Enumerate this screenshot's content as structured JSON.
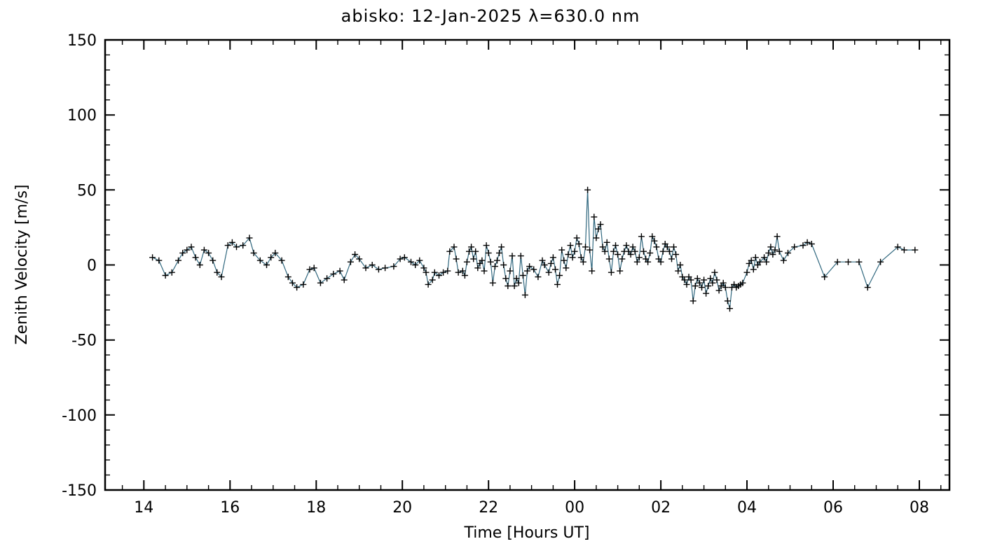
{
  "chart_data": {
    "type": "line",
    "title": "abisko: 12-Jan-2025 λ=630.0 nm",
    "xlabel": "Time [Hours UT]",
    "ylabel": "Zenith Velocity [m/s]",
    "xlim": [
      13.1,
      32.7
    ],
    "ylim": [
      -150,
      150
    ],
    "grid": false,
    "legend": "none",
    "line_color": "#31687f",
    "marker_color": "#000000",
    "marker": "plus",
    "x_minor_step": 0.5,
    "y_minor_step": 10,
    "x_ticks": [
      {
        "value": 14,
        "label": "14"
      },
      {
        "value": 16,
        "label": "16"
      },
      {
        "value": 18,
        "label": "18"
      },
      {
        "value": 20,
        "label": "20"
      },
      {
        "value": 22,
        "label": "22"
      },
      {
        "value": 24,
        "label": "00"
      },
      {
        "value": 26,
        "label": "02"
      },
      {
        "value": 28,
        "label": "04"
      },
      {
        "value": 30,
        "label": "06"
      },
      {
        "value": 32,
        "label": "08"
      }
    ],
    "y_ticks": [
      {
        "value": -150,
        "label": "-150"
      },
      {
        "value": -100,
        "label": "-100"
      },
      {
        "value": -50,
        "label": "-50"
      },
      {
        "value": 0,
        "label": "0"
      },
      {
        "value": 50,
        "label": "50"
      },
      {
        "value": 100,
        "label": "100"
      },
      {
        "value": 150,
        "label": "150"
      }
    ],
    "points": [
      [
        14.2,
        5
      ],
      [
        14.35,
        3
      ],
      [
        14.5,
        -7
      ],
      [
        14.65,
        -5
      ],
      [
        14.8,
        3
      ],
      [
        14.9,
        8
      ],
      [
        15.0,
        10
      ],
      [
        15.1,
        12
      ],
      [
        15.2,
        5
      ],
      [
        15.3,
        0
      ],
      [
        15.4,
        10
      ],
      [
        15.5,
        8
      ],
      [
        15.6,
        3
      ],
      [
        15.7,
        -5
      ],
      [
        15.8,
        -8
      ],
      [
        15.95,
        13
      ],
      [
        16.05,
        15
      ],
      [
        16.15,
        12
      ],
      [
        16.3,
        13
      ],
      [
        16.45,
        18
      ],
      [
        16.55,
        8
      ],
      [
        16.7,
        3
      ],
      [
        16.85,
        0
      ],
      [
        16.95,
        5
      ],
      [
        17.05,
        8
      ],
      [
        17.2,
        3
      ],
      [
        17.35,
        -8
      ],
      [
        17.45,
        -12
      ],
      [
        17.55,
        -15
      ],
      [
        17.7,
        -13
      ],
      [
        17.85,
        -3
      ],
      [
        17.95,
        -2
      ],
      [
        18.1,
        -12
      ],
      [
        18.25,
        -9
      ],
      [
        18.4,
        -6
      ],
      [
        18.55,
        -4
      ],
      [
        18.65,
        -10
      ],
      [
        18.8,
        2
      ],
      [
        18.9,
        7
      ],
      [
        19.0,
        4
      ],
      [
        19.15,
        -2
      ],
      [
        19.3,
        0
      ],
      [
        19.45,
        -3
      ],
      [
        19.6,
        -2
      ],
      [
        19.8,
        -1
      ],
      [
        19.95,
        4
      ],
      [
        20.05,
        5
      ],
      [
        20.2,
        2
      ],
      [
        20.3,
        0
      ],
      [
        20.4,
        3
      ],
      [
        20.5,
        -2
      ],
      [
        20.55,
        -5
      ],
      [
        20.6,
        -13
      ],
      [
        20.7,
        -10
      ],
      [
        20.75,
        -5
      ],
      [
        20.85,
        -7
      ],
      [
        20.95,
        -5
      ],
      [
        21.05,
        -4
      ],
      [
        21.1,
        9
      ],
      [
        21.2,
        12
      ],
      [
        21.25,
        4
      ],
      [
        21.3,
        -5
      ],
      [
        21.4,
        -4
      ],
      [
        21.45,
        -7
      ],
      [
        21.5,
        2
      ],
      [
        21.55,
        9
      ],
      [
        21.6,
        12
      ],
      [
        21.65,
        4
      ],
      [
        21.7,
        9
      ],
      [
        21.75,
        -2
      ],
      [
        21.8,
        1
      ],
      [
        21.85,
        3
      ],
      [
        21.9,
        -4
      ],
      [
        21.95,
        13
      ],
      [
        22.0,
        8
      ],
      [
        22.05,
        2
      ],
      [
        22.1,
        -12
      ],
      [
        22.15,
        -1
      ],
      [
        22.2,
        3
      ],
      [
        22.25,
        8
      ],
      [
        22.3,
        12
      ],
      [
        22.35,
        0
      ],
      [
        22.4,
        -9
      ],
      [
        22.45,
        -14
      ],
      [
        22.5,
        -4
      ],
      [
        22.55,
        6
      ],
      [
        22.6,
        -14
      ],
      [
        22.65,
        -9
      ],
      [
        22.7,
        -12
      ],
      [
        22.75,
        6
      ],
      [
        22.8,
        -7
      ],
      [
        22.85,
        -20
      ],
      [
        22.9,
        -4
      ],
      [
        22.95,
        -1
      ],
      [
        23.05,
        -3
      ],
      [
        23.15,
        -8
      ],
      [
        23.25,
        3
      ],
      [
        23.3,
        0
      ],
      [
        23.4,
        -5
      ],
      [
        23.45,
        1
      ],
      [
        23.5,
        5
      ],
      [
        23.55,
        -3
      ],
      [
        23.6,
        -13
      ],
      [
        23.65,
        -7
      ],
      [
        23.7,
        10
      ],
      [
        23.75,
        3
      ],
      [
        23.8,
        -2
      ],
      [
        23.85,
        7
      ],
      [
        23.9,
        13
      ],
      [
        23.95,
        5
      ],
      [
        24.0,
        9
      ],
      [
        24.05,
        18
      ],
      [
        24.1,
        14
      ],
      [
        24.15,
        5
      ],
      [
        24.2,
        2
      ],
      [
        24.25,
        12
      ],
      [
        24.3,
        50
      ],
      [
        24.35,
        10
      ],
      [
        24.4,
        -4
      ],
      [
        24.45,
        32
      ],
      [
        24.5,
        18
      ],
      [
        24.55,
        24
      ],
      [
        24.6,
        27
      ],
      [
        24.65,
        12
      ],
      [
        24.7,
        9
      ],
      [
        24.75,
        15
      ],
      [
        24.8,
        4
      ],
      [
        24.85,
        -5
      ],
      [
        24.9,
        9
      ],
      [
        24.95,
        13
      ],
      [
        25.0,
        7
      ],
      [
        25.05,
        -4
      ],
      [
        25.1,
        4
      ],
      [
        25.15,
        9
      ],
      [
        25.2,
        13
      ],
      [
        25.25,
        9
      ],
      [
        25.3,
        7
      ],
      [
        25.35,
        12
      ],
      [
        25.4,
        9
      ],
      [
        25.45,
        2
      ],
      [
        25.5,
        5
      ],
      [
        25.55,
        19
      ],
      [
        25.6,
        9
      ],
      [
        25.65,
        4
      ],
      [
        25.7,
        2
      ],
      [
        25.75,
        8
      ],
      [
        25.8,
        19
      ],
      [
        25.85,
        16
      ],
      [
        25.9,
        12
      ],
      [
        25.95,
        4
      ],
      [
        26.0,
        2
      ],
      [
        26.05,
        9
      ],
      [
        26.1,
        14
      ],
      [
        26.15,
        12
      ],
      [
        26.2,
        9
      ],
      [
        26.25,
        4
      ],
      [
        26.3,
        12
      ],
      [
        26.35,
        7
      ],
      [
        26.4,
        -4
      ],
      [
        26.45,
        0
      ],
      [
        26.5,
        -8
      ],
      [
        26.55,
        -10
      ],
      [
        26.6,
        -13
      ],
      [
        26.65,
        -8
      ],
      [
        26.7,
        -10
      ],
      [
        26.75,
        -24
      ],
      [
        26.8,
        -14
      ],
      [
        26.85,
        -9
      ],
      [
        26.9,
        -12
      ],
      [
        26.95,
        -15
      ],
      [
        27.0,
        -10
      ],
      [
        27.05,
        -19
      ],
      [
        27.1,
        -14
      ],
      [
        27.15,
        -9
      ],
      [
        27.2,
        -12
      ],
      [
        27.25,
        -5
      ],
      [
        27.3,
        -10
      ],
      [
        27.35,
        -17
      ],
      [
        27.4,
        -14
      ],
      [
        27.45,
        -12
      ],
      [
        27.5,
        -15
      ],
      [
        27.55,
        -24
      ],
      [
        27.6,
        -29
      ],
      [
        27.65,
        -15
      ],
      [
        27.7,
        -13
      ],
      [
        27.75,
        -15
      ],
      [
        27.8,
        -14
      ],
      [
        27.85,
        -13
      ],
      [
        27.9,
        -12
      ],
      [
        28.0,
        -5
      ],
      [
        28.05,
        1
      ],
      [
        28.1,
        3
      ],
      [
        28.15,
        -3
      ],
      [
        28.2,
        5
      ],
      [
        28.25,
        0
      ],
      [
        28.3,
        2
      ],
      [
        28.4,
        5
      ],
      [
        28.45,
        2
      ],
      [
        28.5,
        8
      ],
      [
        28.55,
        12
      ],
      [
        28.6,
        7
      ],
      [
        28.65,
        10
      ],
      [
        28.7,
        19
      ],
      [
        28.75,
        9
      ],
      [
        28.85,
        3
      ],
      [
        28.95,
        8
      ],
      [
        29.1,
        12
      ],
      [
        29.3,
        13
      ],
      [
        29.4,
        15
      ],
      [
        29.5,
        14
      ],
      [
        29.8,
        -8
      ],
      [
        30.1,
        2
      ],
      [
        30.35,
        2
      ],
      [
        30.6,
        2
      ],
      [
        30.8,
        -15
      ],
      [
        31.1,
        2
      ],
      [
        31.5,
        12
      ],
      [
        31.65,
        10
      ],
      [
        31.9,
        10
      ]
    ]
  }
}
